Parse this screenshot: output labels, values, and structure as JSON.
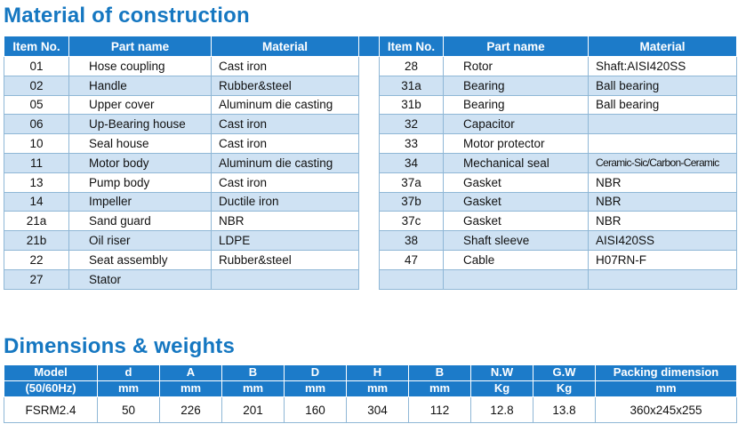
{
  "material": {
    "title": "Material of construction",
    "headers": [
      "Item No.",
      "Part name",
      "Material"
    ],
    "left": [
      [
        "01",
        "Hose coupling",
        "Cast iron"
      ],
      [
        "02",
        "Handle",
        "Rubber&steel"
      ],
      [
        "05",
        "Upper cover",
        "Aluminum die casting"
      ],
      [
        "06",
        "Up-Bearing house",
        "Cast iron"
      ],
      [
        "10",
        "Seal house",
        "Cast iron"
      ],
      [
        "11",
        "Motor body",
        "Aluminum die casting"
      ],
      [
        "13",
        "Pump body",
        "Cast iron"
      ],
      [
        "14",
        "Impeller",
        "Ductile iron"
      ],
      [
        "21a",
        "Sand guard",
        "NBR"
      ],
      [
        "21b",
        "Oil riser",
        "LDPE"
      ],
      [
        "22",
        "Seat assembly",
        "Rubber&steel"
      ],
      [
        "27",
        "Stator",
        ""
      ]
    ],
    "right": [
      [
        "28",
        "Rotor",
        "Shaft:AISI420SS"
      ],
      [
        "31a",
        "Bearing",
        "Ball bearing"
      ],
      [
        "31b",
        "Bearing",
        "Ball bearing"
      ],
      [
        "32",
        "Capacitor",
        ""
      ],
      [
        "33",
        "Motor protector",
        ""
      ],
      [
        "34",
        "Mechanical seal",
        "Ceramic-Sic/Carbon-Ceramic"
      ],
      [
        "37a",
        "Gasket",
        "NBR"
      ],
      [
        "37b",
        "Gasket",
        "NBR"
      ],
      [
        "37c",
        "Gasket",
        "NBR"
      ],
      [
        "38",
        "Shaft sleeve",
        "AISI420SS"
      ],
      [
        "47",
        "Cable",
        "H07RN-F"
      ],
      [
        "",
        "",
        ""
      ]
    ]
  },
  "dimensions": {
    "title": "Dimensions & weights",
    "model_header": "Model",
    "model_sub": "(50/60Hz)",
    "headers": [
      "d",
      "A",
      "B",
      "D",
      "H",
      "B",
      "N.W",
      "G.W",
      "Packing dimension"
    ],
    "units": [
      "mm",
      "mm",
      "mm",
      "mm",
      "mm",
      "mm",
      "Kg",
      "Kg",
      "mm"
    ],
    "rows": [
      [
        "FSRM2.4",
        "50",
        "226",
        "201",
        "160",
        "304",
        "112",
        "12.8",
        "13.8",
        "360x245x255"
      ]
    ]
  },
  "colors": {
    "accent": "#1577c1",
    "header_bg": "#1c7bc9",
    "row_blue": "#cfe2f3"
  }
}
